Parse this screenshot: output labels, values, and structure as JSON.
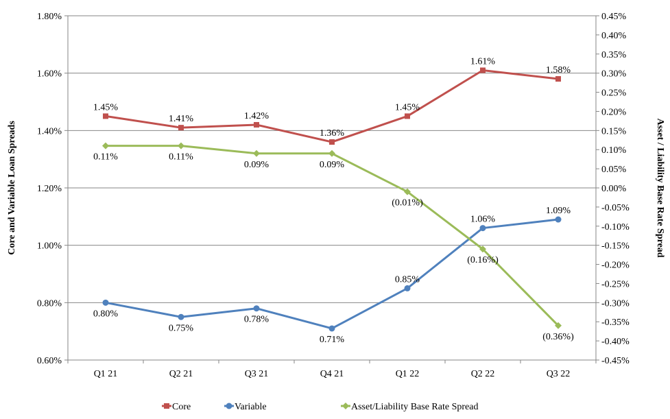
{
  "chart_data": {
    "type": "line",
    "categories": [
      "Q1 21",
      "Q2 21",
      "Q3 21",
      "Q4 21",
      "Q1 22",
      "Q2 22",
      "Q3 22"
    ],
    "left_axis": {
      "title": "Core and Variable Loan Spreads",
      "min": 0.6,
      "max": 1.8,
      "step": 0.2,
      "tick_labels": [
        "0.60%",
        "0.80%",
        "1.00%",
        "1.20%",
        "1.40%",
        "1.60%",
        "1.80%"
      ]
    },
    "right_axis": {
      "title": "Asset / Liability Base Rate Spread",
      "min": -0.45,
      "max": 0.45,
      "step": 0.05,
      "tick_labels": [
        "-0.45%",
        "-0.40%",
        "-0.35%",
        "-0.30%",
        "-0.25%",
        "-0.20%",
        "-0.15%",
        "-0.10%",
        "-0.05%",
        "0.00%",
        "0.05%",
        "0.10%",
        "0.15%",
        "0.20%",
        "0.25%",
        "0.30%",
        "0.35%",
        "0.40%",
        "0.45%"
      ]
    },
    "grid": true,
    "legend_position": "bottom",
    "series": [
      {
        "name": "Core",
        "axis": "left",
        "color": "#c0504d",
        "marker": "square",
        "values": [
          1.45,
          1.41,
          1.42,
          1.36,
          1.45,
          1.61,
          1.58
        ],
        "labels": [
          "1.45%",
          "1.41%",
          "1.42%",
          "1.36%",
          "1.45%",
          "1.61%",
          "1.58%"
        ],
        "label_pos": [
          "above",
          "above",
          "above",
          "above",
          "above",
          "above",
          "above"
        ]
      },
      {
        "name": "Variable",
        "axis": "left",
        "color": "#4f81bd",
        "marker": "circle",
        "values": [
          0.8,
          0.75,
          0.78,
          0.71,
          0.85,
          1.06,
          1.09
        ],
        "labels": [
          "0.80%",
          "0.75%",
          "0.78%",
          "0.71%",
          "0.85%",
          "1.06%",
          "1.09%"
        ],
        "label_pos": [
          "below",
          "below",
          "below",
          "below",
          "above",
          "above",
          "above"
        ]
      },
      {
        "name": "Asset/Liability Base Rate Spread",
        "axis": "right",
        "color": "#9bbb59",
        "marker": "diamond",
        "values": [
          0.11,
          0.11,
          0.09,
          0.09,
          -0.01,
          -0.16,
          -0.36
        ],
        "labels": [
          "0.11%",
          "0.11%",
          "0.09%",
          "0.09%",
          "(0.01%)",
          "(0.16%)",
          "(0.36%)"
        ],
        "label_pos": [
          "below",
          "below",
          "below",
          "below",
          "below",
          "below",
          "below"
        ]
      }
    ]
  }
}
